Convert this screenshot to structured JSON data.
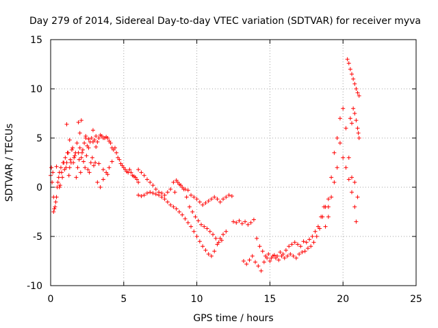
{
  "chart_data": {
    "type": "scatter",
    "title": "Day 279 of 2014, Sidereal Day-to-day VTEC variation (SDTVAR) for receiver myva",
    "xlabel": "GPS time / hours",
    "ylabel": "SDTVAR / TECUs",
    "xlim": [
      0,
      25
    ],
    "ylim": [
      -10,
      15
    ],
    "xticks": [
      0,
      5,
      10,
      15,
      20,
      25
    ],
    "yticks": [
      -10,
      -5,
      0,
      5,
      10,
      15
    ],
    "grid": true,
    "marker": "+",
    "color": "#ff0000",
    "series": [
      {
        "name": "early-scatter-a",
        "x": [
          0.0,
          0.1,
          0.2,
          0.3,
          0.4,
          0.5,
          0.6,
          0.7,
          0.8,
          0.9,
          1.0,
          1.1,
          1.2,
          1.3,
          1.4,
          1.5,
          1.6,
          1.7,
          1.8,
          1.9,
          2.0,
          2.1,
          2.2,
          2.3,
          2.4,
          2.5,
          2.6,
          2.7,
          2.8,
          2.9,
          3.0,
          3.1,
          3.2,
          3.3,
          3.4,
          3.5,
          3.6,
          3.7,
          3.8,
          3.9,
          4.0,
          4.1,
          4.2,
          4.3,
          4.4,
          4.5,
          4.6,
          4.7,
          4.8,
          4.9,
          5.0,
          5.1,
          5.2,
          5.3,
          5.4,
          5.5,
          5.6,
          5.7,
          5.8,
          5.9,
          6.0
        ],
        "y": [
          1.2,
          0.5,
          -1.0,
          -2.0,
          -1.0,
          0.5,
          1.5,
          2.0,
          1.0,
          2.5,
          3.0,
          2.5,
          3.5,
          2.0,
          2.5,
          4.0,
          3.0,
          3.5,
          4.5,
          3.5,
          4.0,
          3.0,
          3.8,
          4.5,
          5.0,
          4.2,
          4.0,
          4.6,
          5.0,
          4.6,
          4.8,
          5.2,
          4.6,
          5.0,
          5.3,
          5.2,
          5.0,
          5.0,
          5.1,
          5.0,
          4.7,
          4.5,
          4.0,
          3.8,
          4.0,
          3.5,
          3.0,
          2.8,
          2.4,
          2.2,
          2.0,
          1.8,
          1.6,
          1.5,
          1.8,
          1.5,
          1.2,
          1.1,
          1.0,
          0.8,
          0.5
        ]
      },
      {
        "name": "early-scatter-b",
        "x": [
          0.05,
          0.15,
          0.25,
          0.35,
          0.45,
          0.55,
          0.65,
          0.75,
          0.85,
          0.95,
          1.05,
          1.15,
          1.25,
          1.35,
          1.45,
          1.55,
          1.65,
          1.75,
          1.85,
          1.95,
          2.05,
          2.15,
          2.25,
          2.35,
          2.45,
          2.55,
          2.65,
          2.75,
          2.85,
          2.95,
          3.05,
          3.2,
          3.4,
          3.6,
          3.8,
          4.0
        ],
        "y": [
          2.0,
          1.5,
          -2.2,
          -1.5,
          0.0,
          1.0,
          0.2,
          1.5,
          2.5,
          1.8,
          2.0,
          3.5,
          1.2,
          2.8,
          3.8,
          2.5,
          3.2,
          1.0,
          2.0,
          2.8,
          1.5,
          3.5,
          2.6,
          2.0,
          3.2,
          1.8,
          1.5,
          2.5,
          3.0,
          2.2,
          2.5,
          0.5,
          0.0,
          0.8,
          1.5,
          2.0
        ]
      },
      {
        "name": "early-outliers",
        "x": [
          0.2,
          0.4,
          0.6,
          1.1,
          1.3,
          1.9,
          2.0,
          2.1,
          2.4,
          2.6,
          2.9,
          3.1,
          3.3,
          3.6,
          3.9,
          4.2
        ],
        "y": [
          -2.5,
          2.1,
          0.0,
          6.4,
          4.8,
          6.6,
          5.5,
          6.8,
          5.2,
          4.9,
          5.8,
          4.1,
          2.4,
          1.8,
          1.3,
          2.6
        ]
      },
      {
        "name": "day-track-mid",
        "x": [
          6.0,
          6.2,
          6.4,
          6.6,
          6.8,
          7.0,
          7.2,
          7.4,
          7.6,
          7.8,
          8.0,
          8.2,
          8.4,
          8.6,
          8.8,
          9.0,
          9.2,
          9.4,
          9.6,
          9.8,
          10.0,
          10.2,
          10.4,
          10.6,
          10.8,
          11.0,
          11.2,
          11.4,
          11.6,
          11.8,
          12.0,
          12.2,
          12.4
        ],
        "y": [
          1.8,
          1.5,
          1.2,
          0.8,
          0.5,
          0.2,
          -0.2,
          -0.5,
          -0.6,
          -0.8,
          -0.5,
          -0.2,
          0.5,
          0.7,
          0.3,
          0.0,
          -0.2,
          -0.3,
          -0.8,
          -1.0,
          -1.2,
          -1.5,
          -1.8,
          -1.6,
          -1.4,
          -1.2,
          -1.0,
          -1.2,
          -1.5,
          -1.2,
          -1.0,
          -0.8,
          -0.9
        ]
      },
      {
        "name": "day-track-lower",
        "x": [
          6.0,
          6.2,
          6.4,
          6.6,
          6.8,
          7.0,
          7.2,
          7.4,
          7.6,
          7.8,
          8.0,
          8.2,
          8.4,
          8.6,
          8.8,
          9.0,
          9.2,
          9.4,
          9.6,
          9.8,
          10.0,
          10.2,
          10.4,
          10.6,
          10.8,
          11.0,
          11.2,
          11.4,
          11.6,
          11.8,
          12.0
        ],
        "y": [
          -0.8,
          -0.9,
          -0.8,
          -0.6,
          -0.5,
          -0.6,
          -0.7,
          -0.8,
          -1.0,
          -1.2,
          -1.5,
          -1.8,
          -2.0,
          -2.2,
          -2.5,
          -2.8,
          -3.2,
          -3.6,
          -4.0,
          -4.5,
          -5.0,
          -5.5,
          -6.0,
          -6.4,
          -6.8,
          -7.0,
          -6.5,
          -5.8,
          -5.2,
          -4.8,
          -4.5
        ]
      },
      {
        "name": "day-track-upper-branch",
        "x": [
          8.5,
          8.7,
          8.9,
          9.1,
          9.3,
          9.5,
          9.7,
          9.9,
          10.1,
          10.3,
          10.5,
          10.7,
          10.9,
          11.1,
          11.3,
          11.5,
          11.7
        ],
        "y": [
          -0.5,
          0.5,
          0.2,
          -0.2,
          -1.0,
          -2.0,
          -2.5,
          -3.0,
          -3.4,
          -3.8,
          -4.0,
          -4.2,
          -4.5,
          -4.8,
          -5.2,
          -5.6,
          -5.4
        ]
      },
      {
        "name": "late-cluster-a",
        "x": [
          12.5,
          12.7,
          12.9,
          13.1,
          13.3,
          13.5,
          13.7,
          13.9,
          14.1,
          14.3,
          14.5,
          14.7,
          14.9,
          15.1,
          15.3,
          15.5,
          15.7,
          15.9,
          16.1,
          16.3,
          16.5,
          16.7,
          16.9,
          17.1,
          17.3,
          17.5,
          17.7,
          17.9,
          18.1,
          18.3,
          18.5,
          18.7
        ],
        "y": [
          -3.5,
          -3.6,
          -3.4,
          -3.7,
          -3.5,
          -3.8,
          -3.6,
          -3.3,
          -5.2,
          -6.0,
          -6.5,
          -7.0,
          -6.8,
          -7.2,
          -6.9,
          -7.0,
          -6.6,
          -6.8,
          -6.4,
          -6.0,
          -5.8,
          -5.6,
          -5.8,
          -6.0,
          -5.5,
          -5.6,
          -5.3,
          -5.0,
          -4.5,
          -4.0,
          -3.0,
          -2.0
        ]
      },
      {
        "name": "late-cluster-b",
        "x": [
          13.2,
          13.4,
          13.6,
          13.8,
          14.0,
          14.2,
          14.4,
          14.6,
          14.8,
          15.0,
          15.2,
          15.4,
          15.6,
          15.8,
          16.0,
          16.2,
          16.4,
          16.6,
          16.8,
          17.0,
          17.2,
          17.4,
          17.6,
          17.8,
          18.0,
          18.2,
          18.4,
          18.6,
          18.8,
          19.0
        ],
        "y": [
          -7.5,
          -7.8,
          -7.4,
          -7.0,
          -7.6,
          -8.0,
          -8.5,
          -7.6,
          -7.2,
          -7.5,
          -7.0,
          -7.2,
          -7.4,
          -7.0,
          -7.2,
          -7.0,
          -6.8,
          -7.0,
          -7.2,
          -6.8,
          -6.6,
          -6.5,
          -6.2,
          -6.0,
          -5.6,
          -5.0,
          -4.2,
          -3.0,
          -2.0,
          -1.2
        ]
      },
      {
        "name": "late-rise-a",
        "x": [
          18.8,
          19.0,
          19.2,
          19.4,
          19.6,
          19.8,
          20.0,
          20.2,
          20.4,
          20.6,
          20.8,
          21.0
        ],
        "y": [
          -4.0,
          -2.0,
          1.0,
          3.5,
          5.0,
          7.0,
          8.0,
          6.0,
          3.0,
          1.0,
          0.5,
          -1.0
        ]
      },
      {
        "name": "late-rise-b",
        "x": [
          19.0,
          19.2,
          19.4,
          19.6,
          19.8,
          20.0,
          20.2,
          20.4,
          20.6,
          20.8,
          20.9
        ],
        "y": [
          -3.0,
          -1.0,
          0.5,
          2.0,
          4.5,
          3.0,
          2.0,
          0.8,
          -0.5,
          -2.0,
          -3.5
        ]
      },
      {
        "name": "late-peak",
        "x": [
          20.3,
          20.4,
          20.5,
          20.6,
          20.7,
          20.8,
          20.9,
          21.0,
          21.1
        ],
        "y": [
          13.0,
          12.6,
          12.0,
          11.5,
          11.0,
          10.5,
          10.0,
          9.6,
          9.3
        ]
      },
      {
        "name": "late-upper-band",
        "x": [
          20.5,
          20.6,
          20.7,
          20.8,
          20.9,
          21.0,
          21.05,
          21.1
        ],
        "y": [
          7.0,
          6.5,
          8.0,
          7.5,
          6.8,
          6.0,
          5.5,
          5.0
        ]
      }
    ]
  }
}
